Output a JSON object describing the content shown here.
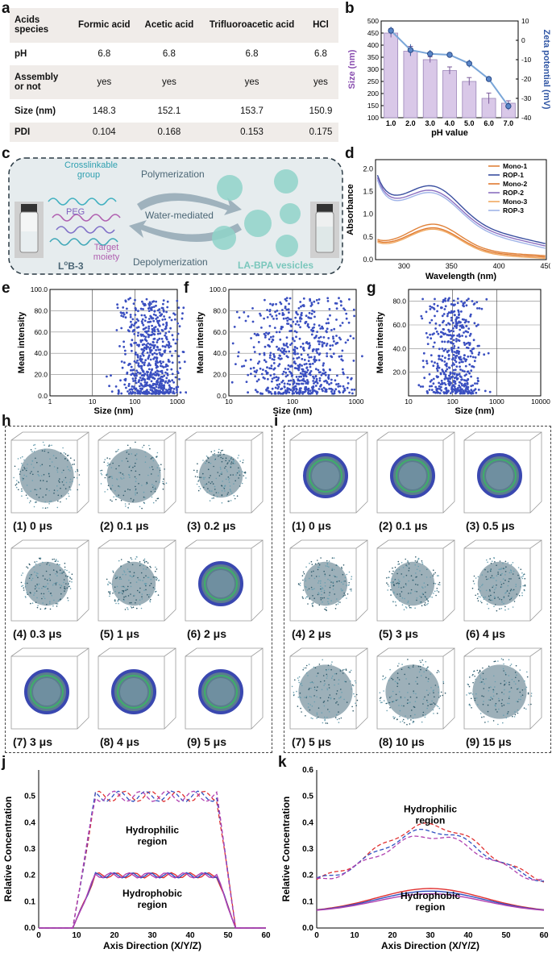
{
  "panels": {
    "a": "a",
    "b": "b",
    "c": "c",
    "d": "d",
    "e": "e",
    "f": "f",
    "g": "g",
    "h": "h",
    "i": "i",
    "j": "j",
    "k": "k"
  },
  "table": {
    "header": [
      "Acids species",
      "Formic acid",
      "Acetic acid",
      "Trifluoroacetic acid",
      "HCl"
    ],
    "rows": [
      {
        "label": "pH",
        "values": [
          "6.8",
          "6.8",
          "6.8",
          "6.8"
        ]
      },
      {
        "label": "Assembly or not",
        "values": [
          "yes",
          "yes",
          "yes",
          "yes"
        ]
      },
      {
        "label": "Size (nm)",
        "values": [
          "148.3",
          "152.1",
          "153.7",
          "150.9"
        ]
      },
      {
        "label": "PDI",
        "values": [
          "0.104",
          "0.168",
          "0.153",
          "0.175"
        ]
      }
    ]
  },
  "schematic": {
    "labels": [
      "Crosslinkable group",
      "PEG",
      "Target moiety"
    ],
    "polymerization": "Polymerization",
    "water": "Water-mediated",
    "depolymerization": "Depolymerization",
    "left_name": "L",
    "left_sup": "o",
    "left_name2": "B-3",
    "right_name": "LA-BPA vesicles",
    "colors": {
      "bg": "#e6ecee",
      "vesicle": "#8fd3c9",
      "arrow": "#9fb2bd"
    }
  },
  "chart_data": [
    {
      "id": "b",
      "type": "bar",
      "categories": [
        "1.0",
        "2.0",
        "3.0",
        "4.0",
        "5.0",
        "6.0",
        "7.0"
      ],
      "series": [
        {
          "name": "Size (nm)",
          "type": "bar",
          "values": [
            450,
            375,
            340,
            295,
            250,
            180,
            160
          ],
          "errors": [
            18,
            20,
            12,
            15,
            16,
            22,
            10
          ],
          "color": "#d9c8e8"
        },
        {
          "name": "Zeta potential (mV)",
          "type": "line",
          "values": [
            5,
            -5,
            -7,
            -7.5,
            -12,
            -20,
            -34
          ],
          "errors": [
            2,
            3,
            2,
            1,
            2,
            1,
            2
          ],
          "color": "#7aa6d8"
        }
      ],
      "xlabel": "pH value",
      "ylabel": "Size (nm)",
      "ylabel2": "Zeta potential (mV)",
      "ylim": [
        100,
        500
      ],
      "y2lim": [
        -40,
        10
      ],
      "yticks": [
        "100",
        "150",
        "200",
        "250",
        "300",
        "350",
        "400",
        "450",
        "500"
      ],
      "y2ticks": [
        "-40",
        "-30",
        "-20",
        "-10",
        "0",
        "10"
      ]
    },
    {
      "id": "d",
      "type": "line",
      "xlabel": "Wavelength (nm)",
      "ylabel": "Absorbance",
      "xlim": [
        270,
        450
      ],
      "ylim": [
        0,
        2.2
      ],
      "xticks": [
        "300",
        "350",
        "400",
        "450"
      ],
      "yticks": [
        "0.0",
        "0.5",
        "1.0",
        "1.5",
        "2.0"
      ],
      "legend": [
        "Mono-1",
        "ROP-1",
        "Mono-2",
        "ROP-2",
        "Mono-3",
        "ROP-3"
      ],
      "legend_colors": [
        "#e0823a",
        "#3a4fa0",
        "#e07a30",
        "#8a6fc0",
        "#f0a860",
        "#a0b4e8"
      ]
    },
    {
      "id": "e",
      "type": "scatter",
      "xlabel": "Size (nm)",
      "ylabel": "Mean intensity",
      "xticks": [
        "1",
        "10",
        "100",
        "1000"
      ],
      "yticks": [
        "0.0",
        "20.0",
        "40.0",
        "60.0",
        "80.0",
        "100.0"
      ]
    },
    {
      "id": "f",
      "type": "scatter",
      "xlabel": "Size (nm)",
      "ylabel": "Mean intensity",
      "xticks": [
        "10",
        "100",
        "1000"
      ],
      "yticks": [
        "0.0",
        "20.0",
        "40.0",
        "60.0",
        "80.0",
        "100.0"
      ]
    },
    {
      "id": "g",
      "type": "scatter",
      "xlabel": "Size (nm)",
      "ylabel": "Mean intensity",
      "xticks": [
        "10",
        "100",
        "1000",
        "10000"
      ],
      "yticks": [
        "20.0",
        "40.0",
        "60.0",
        "80.0"
      ]
    },
    {
      "id": "j",
      "type": "line",
      "xlabel": "Axis Direction (X/Y/Z)",
      "ylabel": "Relative Concentration",
      "xticks": [
        "0",
        "10",
        "20",
        "30",
        "40",
        "50",
        "60"
      ],
      "yticks": [
        "0.0",
        "0.1",
        "0.2",
        "0.3",
        "0.4",
        "0.5"
      ],
      "annotations": [
        "Hydrophilic region",
        "Hydrophobic region"
      ]
    },
    {
      "id": "k",
      "type": "line",
      "xlabel": "Axis Direction (X/Y/Z)",
      "ylabel": "Relative Concentration",
      "xticks": [
        "0",
        "10",
        "20",
        "30",
        "40",
        "50",
        "60"
      ],
      "yticks": [
        "0.0",
        "0.1",
        "0.2",
        "0.3",
        "0.4",
        "0.5",
        "0.6"
      ],
      "annotations": [
        "Hydrophilic region",
        "Hydrophobic region"
      ]
    }
  ],
  "snapshots_h": [
    "(1) 0 μs",
    "(2) 0.1 μs",
    "(3) 0.2 μs",
    "(4) 0.3 μs",
    "(5) 1 μs",
    "(6) 2 μs",
    "(7) 3 μs",
    "(8) 4 μs",
    "(9) 5 μs"
  ],
  "snapshots_i": [
    "(1)  0 μs",
    "(2) 0.1 μs",
    "(3) 0.5 μs",
    "(4) 2 μs",
    "(5) 3 μs",
    "(6) 4 μs",
    "(7) 5 μs",
    "(8) 10 μs",
    "(9) 15 μs"
  ]
}
